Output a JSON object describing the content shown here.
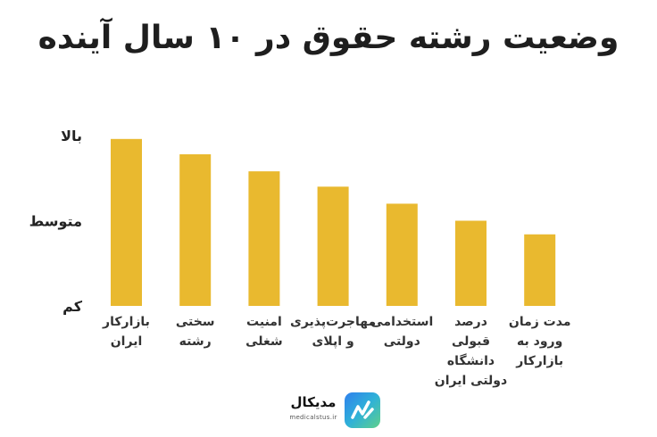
{
  "chart_data": {
    "type": "bar",
    "title": "وضعیت رشته حقوق در ۱۰ سال آینده",
    "categories": [
      [
        "بازارکار",
        "ایران"
      ],
      [
        "سختی",
        "رشته"
      ],
      [
        "امنیت",
        "شغلی"
      ],
      [
        "مهاجرت‌پذیری",
        "و اپلای"
      ],
      [
        "استخدامی",
        "دولتی"
      ],
      [
        "درصد",
        "قبولی",
        "دانشگاه",
        "دولتی ایران"
      ],
      [
        "مدت زمان",
        "ورود به",
        "بازارکار"
      ]
    ],
    "values": [
      0.98,
      0.89,
      0.79,
      0.7,
      0.6,
      0.5,
      0.42
    ],
    "y_tick_labels": [
      "بالا",
      "متوسط",
      "کم"
    ],
    "y_tick_values": [
      1.0,
      0.5,
      0.0
    ],
    "ylim": [
      0,
      1
    ],
    "bar_color": "#e9b92f",
    "grid": false,
    "legend": "none"
  },
  "brand": {
    "name": "مدیکال",
    "url": "medicalstus.ir",
    "badge_colors": [
      "#2f80ed",
      "#5fd08a"
    ]
  }
}
